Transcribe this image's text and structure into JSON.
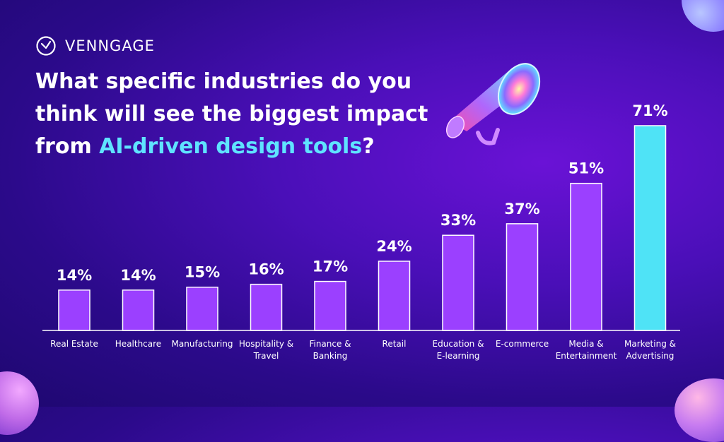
{
  "brand": {
    "name": "VENNGAGE",
    "logo_icon": "venngage-logo-icon"
  },
  "title": {
    "before": "What specific industries do you think will see the biggest impact from ",
    "highlight": "AI-driven design tools",
    "after": "?"
  },
  "colors": {
    "bar": "#9b40ff",
    "highlight_bar": "#4fe3f6",
    "highlight_text": "#5fe3ff",
    "text": "#ffffff"
  },
  "decoration": {
    "icon": "megaphone-icon"
  },
  "chart_data": {
    "type": "bar",
    "categories": [
      "Real Estate",
      "Healthcare",
      "Manufacturing",
      "Hospitality & Travel",
      "Finance & Banking",
      "Retail",
      "Education & E-learning",
      "E-commerce",
      "Media & Entertainment",
      "Marketing & Advertising"
    ],
    "category_lines": [
      [
        "Real Estate"
      ],
      [
        "Healthcare"
      ],
      [
        "Manufacturing"
      ],
      [
        "Hospitality &",
        "Travel"
      ],
      [
        "Finance &",
        "Banking"
      ],
      [
        "Retail"
      ],
      [
        "Education &",
        "E-learning"
      ],
      [
        "E-commerce"
      ],
      [
        "Media &",
        "Entertainment"
      ],
      [
        "Marketing &",
        "Advertising"
      ]
    ],
    "values": [
      14,
      14,
      15,
      16,
      17,
      24,
      33,
      37,
      51,
      71
    ],
    "value_labels": [
      "14%",
      "14%",
      "15%",
      "16%",
      "17%",
      "24%",
      "33%",
      "37%",
      "51%",
      "71%"
    ],
    "unit": "%",
    "highlight_index": 9,
    "ylim": [
      0,
      71
    ],
    "grid": false,
    "legend": "none"
  }
}
